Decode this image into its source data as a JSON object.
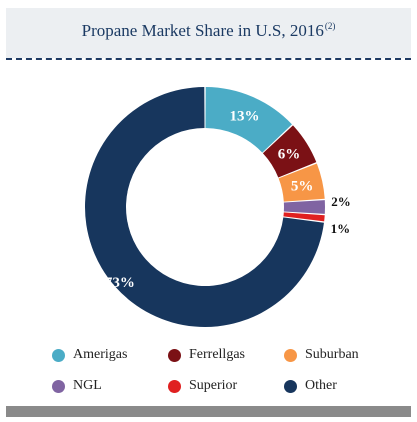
{
  "chart_data": {
    "type": "pie",
    "title": "Propane Market Share in U.S, 2016",
    "title_footnote": "(2)",
    "categories": [
      "Amerigas",
      "Ferrellgas",
      "Suburban",
      "NGL",
      "Superior",
      "Other"
    ],
    "values": [
      13,
      6,
      5,
      2,
      1,
      73
    ],
    "labels": [
      "13%",
      "6%",
      "5%",
      "2%",
      "1%",
      "73%"
    ],
    "colors": [
      "#4bacc6",
      "#7b1115",
      "#f79646",
      "#8064a2",
      "#e02020",
      "#17365d"
    ],
    "legend_position": "bottom"
  }
}
